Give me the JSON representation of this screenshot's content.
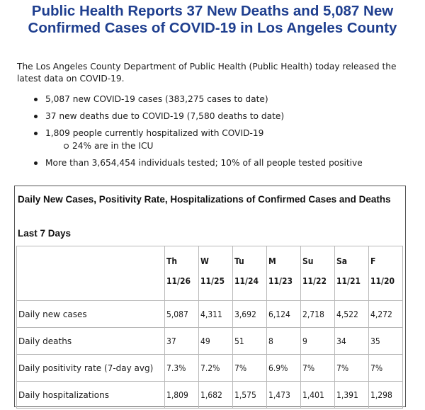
{
  "headline": "Public Health Reports 37 New Deaths and 5,087 New Confirmed Cases of COVID-19 in Los Angeles County",
  "intro": "The Los Angeles County Department of Public Health (Public Health) today released the latest data on COVID-19.",
  "bullets": [
    "5,087 new COVID-19 cases (383,275 cases to date)",
    "37 new deaths due to COVID-19 (7,580 deaths to date)",
    "1,809 people currently hospitalized with COVID-19",
    "More than 3,654,454 individuals tested; 10% of all people tested positive"
  ],
  "sub_bullet": "24% are in the ICU",
  "table_title": "Daily New Cases, Positivity Rate, Hospitalizations of Confirmed Cases and Deaths",
  "table_subtitle": "Last 7 Days",
  "columns": [
    {
      "day": "Th",
      "date": "11/26"
    },
    {
      "day": "W",
      "date": "11/25"
    },
    {
      "day": "Tu",
      "date": "11/24"
    },
    {
      "day": "M",
      "date": "11/23"
    },
    {
      "day": "Su",
      "date": "11/22"
    },
    {
      "day": "Sa",
      "date": "11/21"
    },
    {
      "day": "F",
      "date": "11/20"
    }
  ],
  "rows": [
    {
      "label": "Daily new cases",
      "values": [
        "5,087",
        "4,311",
        "3,692",
        "6,124",
        "2,718",
        "4,522",
        "4,272"
      ]
    },
    {
      "label": "Daily deaths",
      "values": [
        "37",
        "49",
        "51",
        "8",
        "9",
        "34",
        "35"
      ]
    },
    {
      "label": "Daily positivity rate (7-day avg)",
      "values": [
        "7.3%",
        "7.2%",
        "7%",
        "6.9%",
        "7%",
        "7%",
        "7%"
      ]
    },
    {
      "label": "Daily hospitalizations",
      "values": [
        "1,809",
        "1,682",
        "1,575",
        "1,473",
        "1,401",
        "1,391",
        "1,298"
      ]
    }
  ]
}
